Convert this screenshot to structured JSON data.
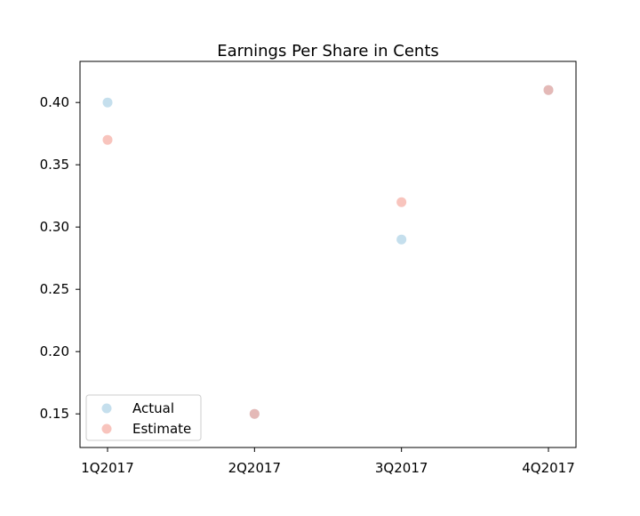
{
  "chart_data": {
    "type": "scatter",
    "title": "Earnings Per Share in Cents",
    "xlabel": "",
    "ylabel": "",
    "categories": [
      "1Q2017",
      "2Q2017",
      "3Q2017",
      "4Q2017"
    ],
    "series": [
      {
        "name": "Actual",
        "values": [
          0.4,
          0.15,
          0.29,
          0.41
        ],
        "color": "#a6cee3"
      },
      {
        "name": "Estimate",
        "values": [
          0.37,
          0.15,
          0.32,
          0.41
        ],
        "color": "#f4a59a"
      }
    ],
    "yticks": [
      0.15,
      0.2,
      0.25,
      0.3,
      0.35,
      0.4
    ],
    "ytick_labels": [
      "0.15",
      "0.20",
      "0.25",
      "0.30",
      "0.35",
      "0.40"
    ],
    "ylim": [
      0.123,
      0.433
    ],
    "grid": false,
    "legend_position": "lower-left"
  }
}
